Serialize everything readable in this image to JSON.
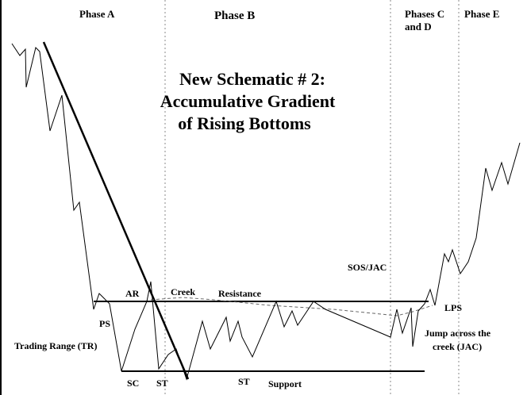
{
  "phases": [
    "Phase A",
    "Phase B",
    "Phases C",
    "and D",
    "Phase E"
  ],
  "title": [
    "New Schematic # 2:",
    "Accumulative Gradient",
    "of Rising Bottoms"
  ],
  "labels": {
    "ar": "AR",
    "creek": "Creek",
    "resistance": "Resistance",
    "ps": "PS",
    "tr": "Trading Range (TR)",
    "sc": "SC",
    "st1": "ST",
    "st2": "ST",
    "support": "Support",
    "sos": "SOS/JAC",
    "lps": "LPS",
    "jac1": "Jump across the",
    "jac2": "creek (JAC)"
  }
}
